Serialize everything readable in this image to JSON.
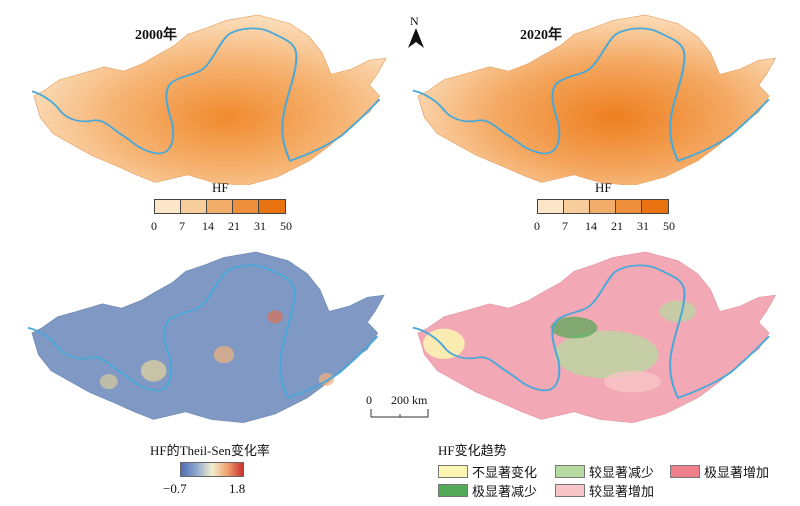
{
  "panels": {
    "top_left_title": "2000年",
    "top_right_title": "2020年"
  },
  "north_arrow": {
    "label": "N"
  },
  "hf_legend": {
    "title": "HF",
    "ticks": [
      "0",
      "7",
      "14",
      "21",
      "31",
      "50"
    ],
    "colors": [
      "#fbe6c9",
      "#f8cd9c",
      "#f3ad6a",
      "#ee8f3b",
      "#e97311"
    ]
  },
  "scale_bar": {
    "zero": "0",
    "label": "200 km"
  },
  "sen_legend": {
    "title": "HF的Theil-Sen变化率",
    "min": "−0.7",
    "max": "1.8"
  },
  "trend_legend": {
    "title": "HF变化趋势",
    "items": [
      {
        "label": "不显著变化",
        "color": "#fbf7b3"
      },
      {
        "label": "较显著减少",
        "color": "#b5dba0"
      },
      {
        "label": "极显著增加",
        "color": "#ef7f8b"
      },
      {
        "label": "极显著减少",
        "color": "#52a856"
      },
      {
        "label": "较显著增加",
        "color": "#f7c4c7"
      }
    ]
  },
  "colors": {
    "river": "#4aa8d8",
    "sen_base": "#7f98c4",
    "trend_base": "#f2a9b5"
  }
}
